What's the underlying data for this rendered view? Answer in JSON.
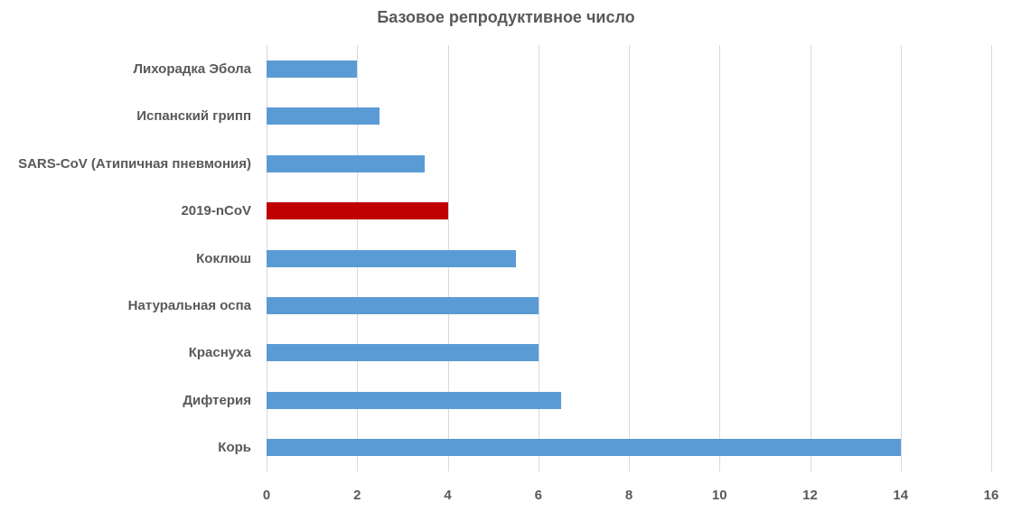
{
  "chart_data": {
    "type": "bar",
    "orientation": "horizontal",
    "title": "Базовое репродуктивное число",
    "xlabel": "",
    "ylabel": "",
    "xlim": [
      0,
      16
    ],
    "x_ticks": [
      "0",
      "2",
      "4",
      "6",
      "8",
      "10",
      "12",
      "14",
      "16"
    ],
    "grid": true,
    "legend": null,
    "categories": [
      "Лихорадка Эбола",
      "Испанский грипп",
      "SARS-CoV (Атипичная пневмония)",
      "2019-nCoV",
      "Коклюш",
      "Натуральная оспа",
      "Краснуха",
      "Дифтерия",
      "Корь"
    ],
    "values": [
      2,
      2.5,
      3.5,
      4,
      5.5,
      6,
      6,
      6.5,
      14
    ],
    "colors": [
      "#5b9bd5",
      "#5b9bd5",
      "#5b9bd5",
      "#c00000",
      "#5b9bd5",
      "#5b9bd5",
      "#5b9bd5",
      "#5b9bd5",
      "#5b9bd5"
    ],
    "highlight": "2019-nCoV"
  },
  "colors": {
    "default_bar": "#5b9bd5",
    "highlight_bar": "#c00000",
    "gridline": "#d9d9d9",
    "text": "#595959"
  }
}
